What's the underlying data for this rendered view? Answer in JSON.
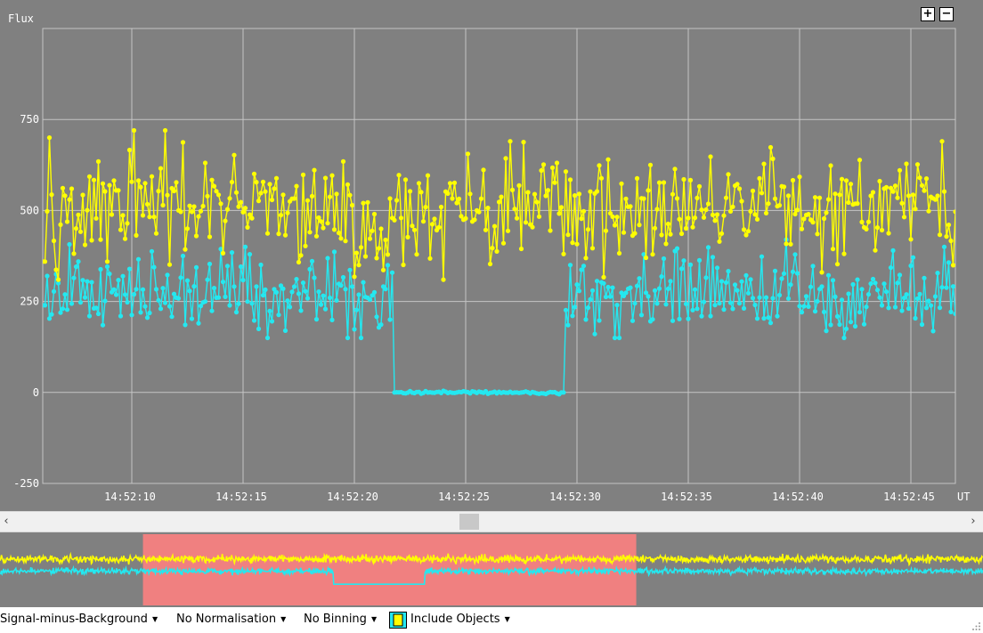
{
  "chart_data": {
    "type": "line",
    "ylabel": "Flux",
    "xlabel": "UT",
    "y_ticks": [
      "750",
      "500",
      "250",
      "0",
      "-250"
    ],
    "y_tick_values": [
      750,
      500,
      250,
      0,
      -250
    ],
    "x_ticks": [
      "14:52:10",
      "14:52:15",
      "14:52:20",
      "14:52:25",
      "14:52:30",
      "14:52:35",
      "14:52:40",
      "14:52:45"
    ],
    "x_tick_seconds": [
      10,
      15,
      20,
      25,
      30,
      35,
      40,
      45
    ],
    "ylim": [
      -250,
      1000
    ],
    "xlim_seconds": [
      6,
      47
    ],
    "grid": true,
    "series": [
      {
        "color": "#ffff00",
        "marker_color": "#ffff00",
        "x_range_seconds": [
          6,
          47
        ],
        "mean_value": 500,
        "scatter": 70,
        "value_range": [
          310,
          720
        ],
        "sample_interval_seconds": 0.1,
        "dips": [
          {
            "x_range_seconds": [
              20,
              21.7
            ],
            "value": 400
          }
        ],
        "sample_points": [
          {
            "x": 6.3,
            "y": 700
          },
          {
            "x": 7.2,
            "y": 530
          },
          {
            "x": 8.6,
            "y": 420
          },
          {
            "x": 10.1,
            "y": 720
          },
          {
            "x": 11.5,
            "y": 720
          },
          {
            "x": 18.5,
            "y": 470
          },
          {
            "x": 20.2,
            "y": 350
          },
          {
            "x": 23.1,
            "y": 470
          },
          {
            "x": 24.0,
            "y": 310
          },
          {
            "x": 27.0,
            "y": 690
          },
          {
            "x": 31.4,
            "y": 640
          },
          {
            "x": 33.1,
            "y": 370
          },
          {
            "x": 41.0,
            "y": 330
          },
          {
            "x": 46.4,
            "y": 690
          }
        ]
      },
      {
        "color": "#24e8f0",
        "marker_color": "#24e8f0",
        "x_range_seconds": [
          6,
          47
        ],
        "mean_value": 275,
        "scatter": 55,
        "value_range": [
          150,
          420
        ],
        "sample_interval_seconds": 0.1,
        "dropout": {
          "x_range_seconds": [
            21.8,
            29.4
          ],
          "value": 0
        },
        "sample_points": [
          {
            "x": 6.2,
            "y": 320
          },
          {
            "x": 9.5,
            "y": 210
          },
          {
            "x": 13.0,
            "y": 190
          },
          {
            "x": 19.7,
            "y": 150
          },
          {
            "x": 21.6,
            "y": 200
          },
          {
            "x": 21.8,
            "y": 0
          },
          {
            "x": 29.4,
            "y": 0
          },
          {
            "x": 29.7,
            "y": 350
          },
          {
            "x": 35.4,
            "y": 230
          },
          {
            "x": 42.0,
            "y": 150
          },
          {
            "x": 46.5,
            "y": 400
          }
        ]
      }
    ]
  },
  "overview": {
    "highlight_color": "#f08080",
    "highlight_range_seconds": [
      6,
      47
    ]
  },
  "zoom": {
    "in_label": "+",
    "out_label": "−"
  },
  "scrollbar": {
    "left_arrow": "‹",
    "right_arrow": "›"
  },
  "toolbar": {
    "signal_mode": "Signal-minus-Background",
    "normalisation": "No Normalisation",
    "binning": "No Binning",
    "objects": "Include Objects",
    "swatch_colors": [
      "#24e8f0",
      "#ffff00"
    ]
  },
  "colors": {
    "plot_background": "#808080",
    "grid": "#c4c4c4",
    "axis_text": "#ffffff"
  }
}
